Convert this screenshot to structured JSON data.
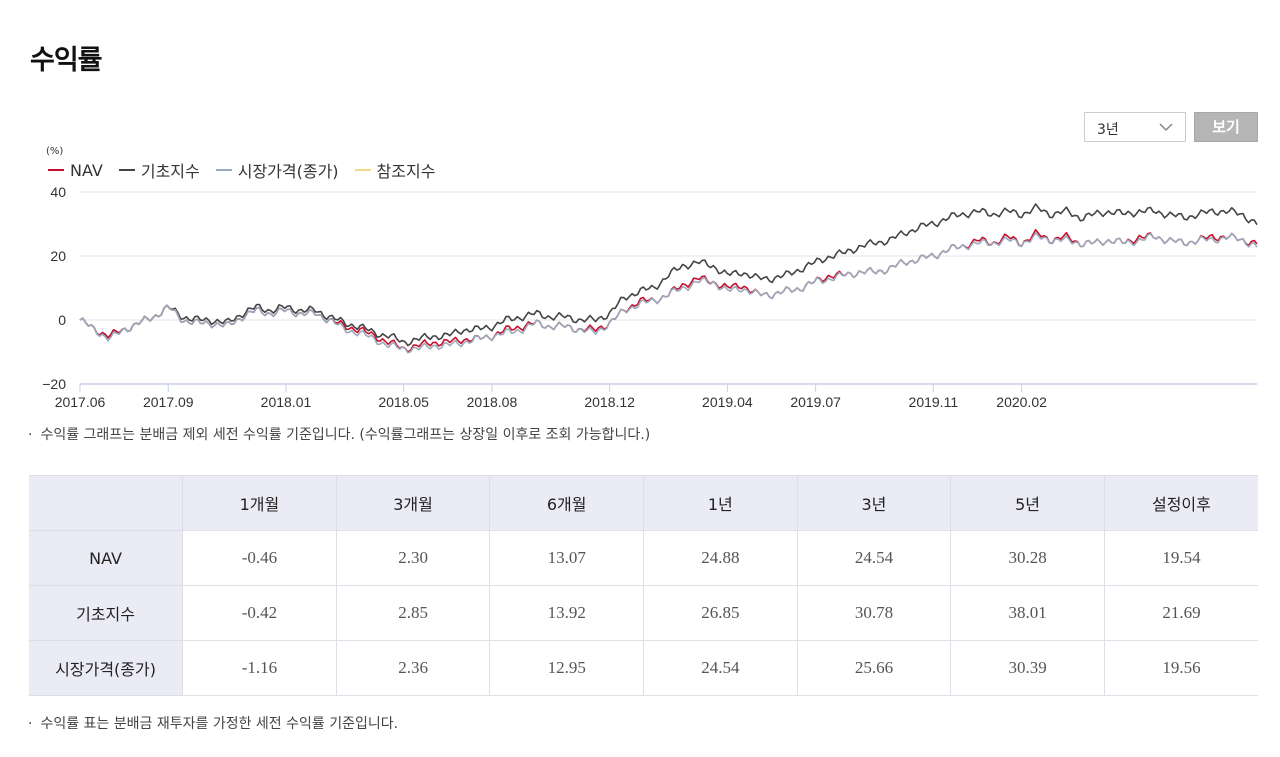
{
  "page": {
    "title": "수익률"
  },
  "controls": {
    "period_selected": "3년",
    "view_label": "보기"
  },
  "notes": {
    "chart_note": "수익률 그래프는 분배금 제외 세전 수익률 기준입니다. (수익률그래프는 상장일 이후로 조회 가능합니다.)",
    "table_note": "수익률 표는 분배금 재투자를 가정한 세전 수익률 기준입니다.",
    "bullet": "·"
  },
  "chart_data": {
    "type": "line",
    "unit": "(%)",
    "ylim": [
      -20,
      40
    ],
    "yticks": [
      "40",
      "20",
      "0",
      "−20"
    ],
    "ytick_values": [
      40,
      20,
      0,
      -20
    ],
    "xlim": [
      "2017.06",
      "2020.05"
    ],
    "xticks": [
      "2017.06",
      "2017.09",
      "2018.01",
      "2018.05",
      "2018.08",
      "2018.12",
      "2019.04",
      "2019.07",
      "2019.11",
      "2020.02"
    ],
    "xtick_months": [
      0,
      3,
      7,
      11,
      14,
      18,
      22,
      25,
      29,
      32
    ],
    "x_months": [
      0,
      0.5,
      1,
      1.5,
      2,
      2.5,
      3,
      3.5,
      4,
      4.5,
      5,
      5.5,
      6,
      6.5,
      7,
      7.5,
      8,
      8.5,
      9,
      9.5,
      10,
      10.5,
      11,
      11.5,
      12,
      12.5,
      13,
      13.5,
      14,
      14.5,
      15,
      15.5,
      16,
      16.5,
      17,
      17.5,
      18,
      18.5,
      19,
      19.5,
      20,
      20.5,
      21,
      21.5,
      22,
      22.5,
      23,
      23.5,
      24,
      24.5,
      25,
      25.5,
      26,
      26.5,
      27,
      27.5,
      28,
      28.5,
      29,
      29.5,
      30,
      30.5,
      31,
      31.5,
      32,
      32.5,
      33,
      33.5,
      34,
      34.5,
      35,
      35.5,
      36,
      36.5,
      37,
      37.5,
      38,
      38.5,
      39,
      39.5,
      40
    ],
    "series": [
      {
        "name": "NAV",
        "color": "#c8102e",
        "values": [
          0,
          -3,
          -5,
          -3,
          -1,
          1,
          4,
          0,
          -1,
          -1,
          -2,
          1,
          3,
          2,
          3,
          2,
          2,
          0,
          -2,
          -3,
          -5,
          -7,
          -9,
          -8,
          -7,
          -7,
          -6,
          -6,
          -5,
          -3,
          -2,
          -1,
          -2,
          -2,
          -3,
          -3,
          -1,
          3,
          6,
          6,
          8,
          11,
          13,
          12,
          10,
          11,
          8,
          8,
          9,
          10,
          12,
          14,
          14,
          15,
          15,
          16,
          18,
          19,
          20,
          22,
          23,
          25,
          24,
          26,
          24,
          27,
          25,
          26,
          24,
          24,
          25,
          24,
          26,
          26,
          25,
          24,
          25,
          26,
          26,
          25,
          24
        ]
      },
      {
        "name": "기초지수",
        "color": "#444444",
        "values": [
          0,
          -3,
          -5,
          -3,
          -1,
          1,
          4,
          1,
          0,
          0,
          -1,
          2,
          4,
          3,
          4,
          3,
          3,
          1,
          -1,
          -2,
          -4,
          -5,
          -7,
          -6,
          -5,
          -5,
          -3,
          -3,
          -2,
          0,
          1,
          2,
          1,
          1,
          0,
          0,
          2,
          7,
          9,
          10,
          14,
          17,
          18,
          17,
          14,
          15,
          13,
          13,
          14,
          16,
          18,
          20,
          21,
          23,
          24,
          25,
          27,
          29,
          30,
          32,
          33,
          34,
          33,
          34,
          33,
          35,
          33,
          34,
          32,
          33,
          34,
          33,
          34,
          34,
          33,
          32,
          33,
          34,
          34,
          33,
          30
        ]
      },
      {
        "name": "시장가격(종가)",
        "color": "#9aaabc",
        "values": [
          0,
          -3,
          -6,
          -3,
          -1,
          1,
          4,
          0,
          -1,
          -1,
          -2,
          1,
          3,
          2,
          3,
          2,
          2,
          0,
          -3,
          -4,
          -6,
          -8,
          -9,
          -9,
          -8,
          -8,
          -7,
          -6,
          -5,
          -4,
          -3,
          -1,
          -2,
          -2,
          -3,
          -4,
          -1,
          3,
          5,
          6,
          8,
          10,
          12,
          12,
          9,
          10,
          8,
          8,
          9,
          10,
          12,
          13,
          14,
          15,
          15,
          16,
          18,
          19,
          20,
          22,
          23,
          24,
          24,
          25,
          24,
          26,
          25,
          25,
          24,
          24,
          25,
          24,
          25,
          26,
          25,
          24,
          25,
          25,
          26,
          25,
          23
        ]
      },
      {
        "name": "참조지수",
        "color": "#f5d98b",
        "values": []
      }
    ],
    "legend_position": "top-left",
    "grid": true
  },
  "table": {
    "columns": [
      "",
      "1개월",
      "3개월",
      "6개월",
      "1년",
      "3년",
      "5년",
      "설정이후"
    ],
    "rows": [
      {
        "label": "NAV",
        "values": [
          "-0.46",
          "2.30",
          "13.07",
          "24.88",
          "24.54",
          "30.28",
          "19.54"
        ]
      },
      {
        "label": "기초지수",
        "values": [
          "-0.42",
          "2.85",
          "13.92",
          "26.85",
          "30.78",
          "38.01",
          "21.69"
        ]
      },
      {
        "label": "시장가격(종가)",
        "values": [
          "-1.16",
          "2.36",
          "12.95",
          "24.54",
          "25.66",
          "30.39",
          "19.56"
        ]
      }
    ]
  }
}
